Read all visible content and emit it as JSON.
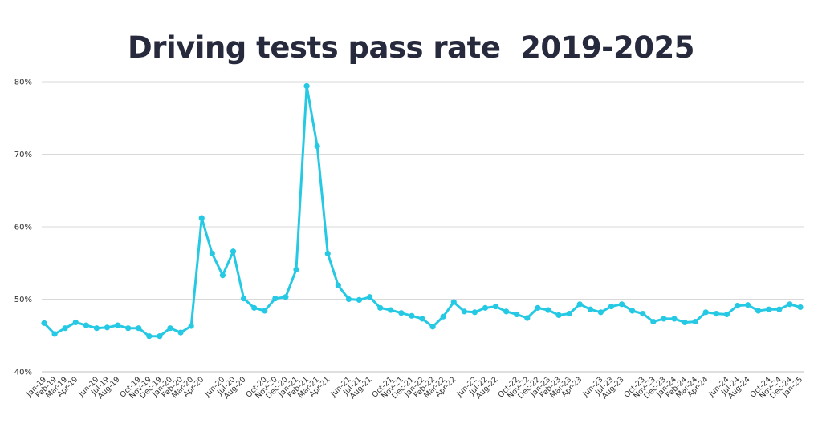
{
  "chart_data": {
    "type": "line",
    "title": "Driving tests pass rate  2019-2025",
    "ylim": [
      40,
      80
    ],
    "y_ticks": [
      "40%",
      "50%",
      "60%",
      "70%",
      "80%"
    ],
    "y_tick_values": [
      40,
      50,
      60,
      70,
      80
    ],
    "grid": true,
    "line_color": "#25c9e3",
    "x": [
      "Jan-19",
      "Feb-19",
      "Mar-19",
      "Apr-19",
      "May-19",
      "Jun-19",
      "Jul-19",
      "Aug-19",
      "Sep-19",
      "Oct-19",
      "Nov-19",
      "Dec-19",
      "Jan-20",
      "Feb-20",
      "Mar-20",
      "Apr-20",
      "May-20",
      "Jun-20",
      "Jul-20",
      "Aug-20",
      "Sep-20",
      "Oct-20",
      "Nov-20",
      "Dec-20",
      "Jan-21",
      "Feb-21",
      "Mar-21",
      "Apr-21",
      "May-21",
      "Jun-21",
      "Jul-21",
      "Aug-21",
      "Sep-21",
      "Oct-21",
      "Nov-21",
      "Dec-21",
      "Jan-22",
      "Feb-22",
      "Mar-22",
      "Apr-22",
      "May-22",
      "Jun-22",
      "Jul-22",
      "Aug-22",
      "Sep-22",
      "Oct-22",
      "Nov-22",
      "Dec-22",
      "Jan-23",
      "Feb-23",
      "Mar-23",
      "Apr-23",
      "May-23",
      "Jun-23",
      "Jul-23",
      "Aug-23",
      "Sep-23",
      "Oct-23",
      "Nov-23",
      "Dec-23",
      "Jan-24",
      "Feb-24",
      "Mar-24",
      "Apr-24",
      "May-24",
      "Jun-24",
      "Jul-24",
      "Aug-24",
      "Sep-24",
      "Oct-24",
      "Nov-24",
      "Dec-24",
      "Jan-25"
    ],
    "x_tick_labels": [
      "Jan-19",
      "Feb-19",
      "Mar-19",
      "Apr-19",
      "",
      "Jun-19",
      "Jul-19",
      "Aug-19",
      "",
      "Oct-19",
      "Nov-19",
      "Dec-19",
      "Jan-20",
      "Feb-20",
      "Mar-20",
      "Apr-20",
      "",
      "Jun-20",
      "Jul-20",
      "Aug-20",
      "",
      "Oct-20",
      "Nov-20",
      "Dec-20",
      "Jan-21",
      "Feb-21",
      "Mar-21",
      "Apr-21",
      "",
      "Jun-21",
      "Jul-21",
      "Aug-21",
      "",
      "Oct-21",
      "Nov-21",
      "Dec-21",
      "Jan-22",
      "Feb-22",
      "Mar-22",
      "Apr-22",
      "",
      "Jun-22",
      "Jul-22",
      "Aug-22",
      "",
      "Oct-22",
      "Nov-22",
      "Dec-22",
      "Jan-23",
      "Feb-23",
      "Mar-23",
      "Apr-23",
      "",
      "Jun-23",
      "Jul-23",
      "Aug-23",
      "",
      "Oct-23",
      "Nov-23",
      "Dec-23",
      "Jan-24",
      "Feb-24",
      "Mar-24",
      "Apr-24",
      "",
      "Jun-24",
      "Jul-24",
      "Aug-24",
      "",
      "Oct-24",
      "Nov-24",
      "Dec-24",
      "Jan-25"
    ],
    "series": [
      {
        "values": [
          46.7,
          45.2,
          46.0,
          46.8,
          46.4,
          46.0,
          46.1,
          46.4,
          46.0,
          46.0,
          44.9,
          44.9,
          46.0,
          45.4,
          46.3,
          61.2,
          56.3,
          53.3,
          56.6,
          50.1,
          48.8,
          48.4,
          50.1,
          50.3,
          54.1,
          79.4,
          71.1,
          56.3,
          51.9,
          50.0,
          49.9,
          50.3,
          48.8,
          48.5,
          48.1,
          47.7,
          47.3,
          46.2,
          47.6,
          49.6,
          48.3,
          48.2,
          48.8,
          49.0,
          48.3,
          47.9,
          47.4,
          48.8,
          48.5,
          47.8,
          48.0,
          49.3,
          48.6,
          48.2,
          49.0,
          49.3,
          48.4,
          48.0,
          46.9,
          47.3,
          47.3,
          46.8,
          46.9,
          48.2,
          48.0,
          47.9,
          49.1,
          49.2,
          48.4,
          48.6,
          48.6,
          49.3,
          48.9
        ]
      }
    ]
  }
}
